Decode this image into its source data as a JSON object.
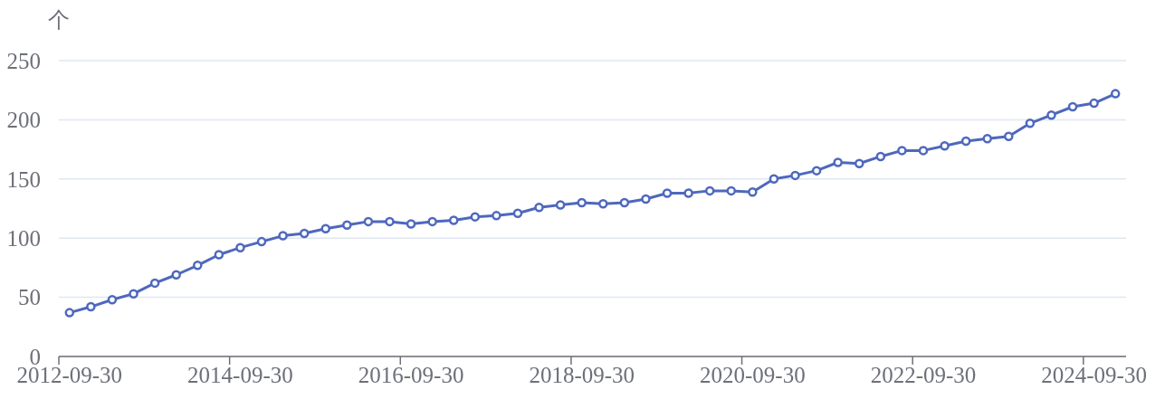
{
  "chart_data": {
    "type": "line",
    "ylabel": "个",
    "categories": [
      "2012-09-30",
      null,
      null,
      null,
      null,
      null,
      null,
      null,
      "2014-09-30",
      null,
      null,
      null,
      null,
      null,
      null,
      null,
      "2016-09-30",
      null,
      null,
      null,
      null,
      null,
      null,
      null,
      "2018-09-30",
      null,
      null,
      null,
      null,
      null,
      null,
      null,
      "2020-09-30",
      null,
      null,
      null,
      null,
      null,
      null,
      null,
      "2022-09-30",
      null,
      null,
      null,
      null,
      null,
      null,
      null,
      "2024-09-30",
      null
    ],
    "values": [
      37,
      42,
      48,
      53,
      62,
      69,
      77,
      86,
      92,
      97,
      102,
      104,
      108,
      111,
      114,
      114,
      112,
      114,
      115,
      118,
      119,
      121,
      126,
      128,
      130,
      129,
      130,
      133,
      138,
      138,
      140,
      140,
      139,
      150,
      153,
      157,
      164,
      163,
      169,
      174,
      174,
      178,
      182,
      184,
      186,
      197,
      204,
      211,
      214,
      222
    ],
    "color": "#4e68bd",
    "ylim": [
      0,
      250
    ],
    "yticks": [
      0,
      50,
      100,
      150,
      200,
      250
    ],
    "grid": "y",
    "marker": "circle",
    "line_style": "solid"
  }
}
